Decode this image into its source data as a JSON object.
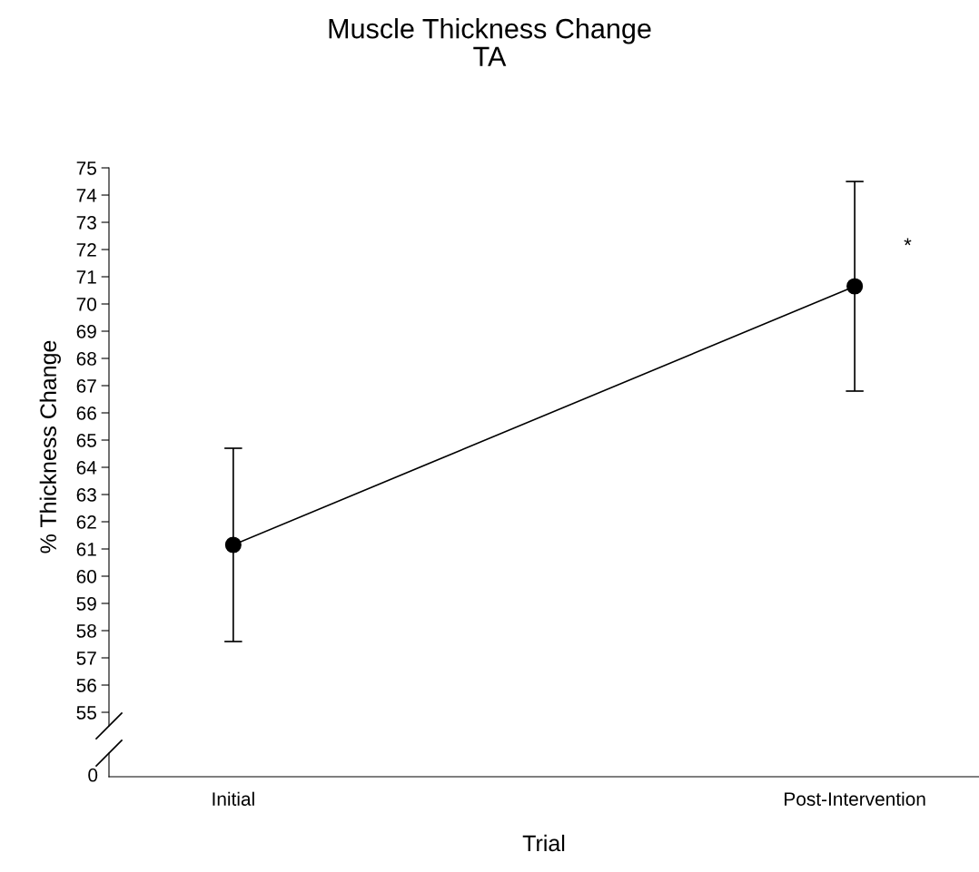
{
  "chart_data": {
    "type": "line",
    "title": "Muscle Thickness Change\nTA",
    "ylabel": "% Thickness Change",
    "xlabel": "Trial",
    "categories": [
      "Initial",
      "Post-Intervention"
    ],
    "series": [
      {
        "color": "#000000",
        "values": [
          61.15,
          70.65
        ],
        "errors": [
          [
            57.6,
            64.7
          ],
          [
            66.8,
            74.5
          ]
        ]
      }
    ],
    "ylim": [
      54.5,
      75
    ],
    "yticks": [
      55,
      56,
      57,
      58,
      59,
      60,
      61,
      62,
      63,
      64,
      65,
      66,
      67,
      68,
      69,
      70,
      71,
      72,
      73,
      74,
      75
    ],
    "marker": "circle",
    "line_style": "solid",
    "grid": false,
    "legend": false,
    "annotations": [
      {
        "text": "*",
        "x": "Post-Intervention",
        "y": 72.1
      },
      "0"
    ]
  }
}
